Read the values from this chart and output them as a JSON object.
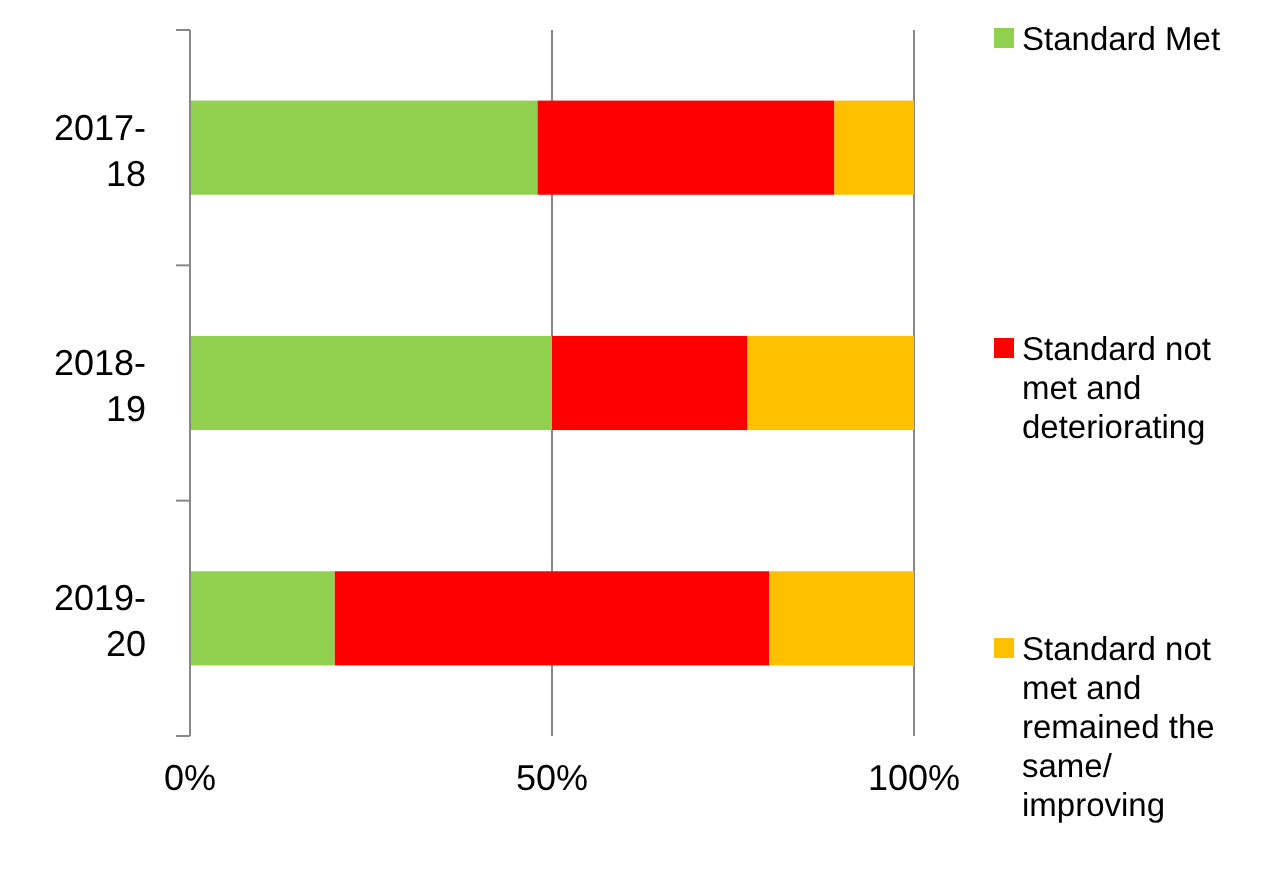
{
  "chart_data": {
    "type": "bar",
    "orientation": "horizontal",
    "stacked": true,
    "categories": [
      "2017-18",
      "2018-19",
      "2019-20"
    ],
    "series": [
      {
        "name": "Standard Met",
        "color": "#92d050",
        "values": [
          48,
          50,
          20
        ]
      },
      {
        "name": "Standard not met and deteriorating",
        "color": "#ff0000",
        "values": [
          41,
          27,
          60
        ]
      },
      {
        "name": "Standard not met and remained the same/ improving",
        "color": "#ffc000",
        "values": [
          11,
          23,
          20
        ]
      }
    ],
    "xlim": [
      0,
      100
    ],
    "xticks": [
      {
        "value": 0,
        "label": "0%"
      },
      {
        "value": 50,
        "label": "50%"
      },
      {
        "value": 100,
        "label": "100%"
      }
    ],
    "grid": "x",
    "legend": "right"
  }
}
